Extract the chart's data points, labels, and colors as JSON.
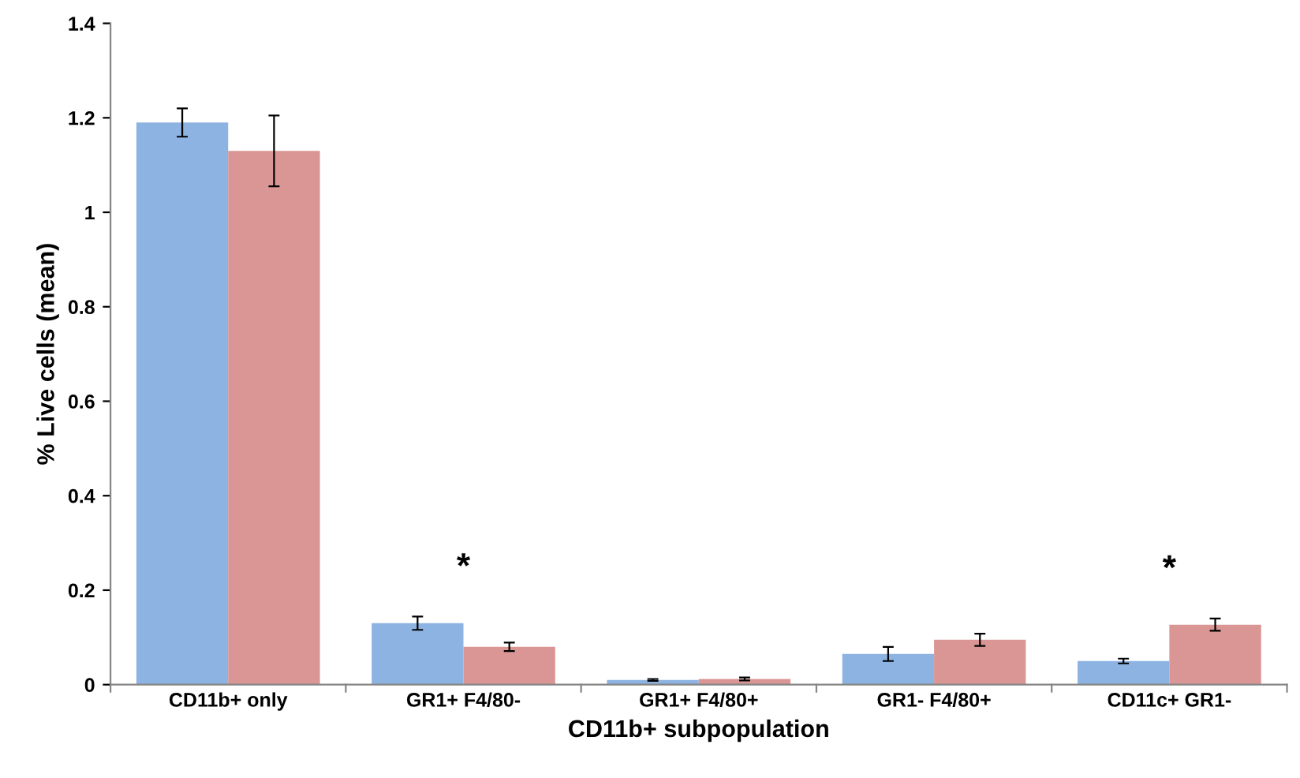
{
  "chart_data": {
    "type": "bar",
    "xlabel": "CD11b+ subpopulation",
    "ylabel": "% Live cells (mean)",
    "categories": [
      "CD11b+ only",
      "GR1+ F4/80-",
      "GR1+ F4/80+",
      "GR1- F4/80+",
      "CD11c+ GR1-"
    ],
    "series": [
      {
        "color": "#8db3e2",
        "values": [
          1.19,
          0.13,
          0.01,
          0.065,
          0.05
        ],
        "errors": [
          0.03,
          0.014,
          0.002,
          0.015,
          0.005
        ]
      },
      {
        "color": "#d99694",
        "values": [
          1.13,
          0.08,
          0.012,
          0.095,
          0.127
        ],
        "errors": [
          0.075,
          0.009,
          0.003,
          0.013,
          0.013
        ]
      }
    ],
    "ylim": [
      0,
      1.4
    ],
    "yticks": [
      0,
      0.2,
      0.4,
      0.6,
      0.8,
      1,
      1.2,
      1.4
    ],
    "grid": false,
    "legend": false,
    "annotations": [
      "*",
      "*"
    ]
  }
}
